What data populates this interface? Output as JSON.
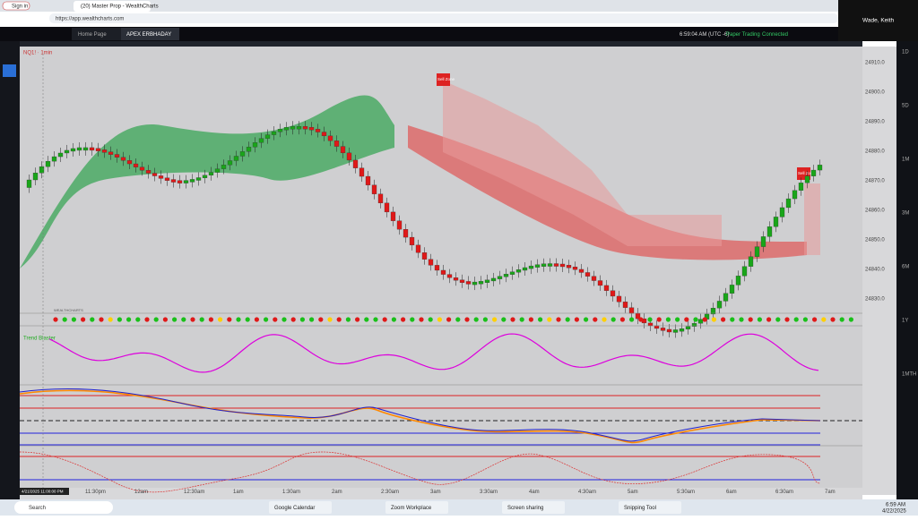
{
  "browser": {
    "sign_in": "Sign in",
    "tab_title": "(20) Master Prop - WealthCharts",
    "url": "https://app.wealthcharts.com"
  },
  "user": {
    "name": "Wade, Keith"
  },
  "app": {
    "tabs": [
      "Home Page",
      "APEX ERBHADAY"
    ],
    "clock": "6:59:04 AM (UTC -6)",
    "status": [
      "Paper Trading",
      "Connected"
    ]
  },
  "chart": {
    "symbol": "NQ1! · 1min",
    "sell_zone": [
      "Sell Zone",
      "Sell Zone"
    ],
    "date_label": "4/21/2025 11:00:00 PM",
    "time_labels": [
      "11:30pm",
      "12am",
      "12:30am",
      "1am",
      "1:30am",
      "2am",
      "2:30am",
      "3am",
      "3:30am",
      "4am",
      "4:30am",
      "5am",
      "5:30am",
      "6am",
      "6:30am",
      "7am"
    ],
    "price_labels": [
      "24910.0",
      "24900.0",
      "24890.0",
      "24880.0",
      "24870.0",
      "24860.0",
      "24850.0",
      "24840.0",
      "24830.0"
    ],
    "oscillator_label": "Trend Blaster",
    "sub_labels": [
      "WEALTHCHARTS"
    ]
  },
  "side_panel": [
    "1D",
    "5D",
    "1M",
    "3M",
    "6M",
    "1Y",
    "1MTH"
  ],
  "taskbar": {
    "search": "Search",
    "items": [
      "Google Calendar",
      "Zoom Workplace",
      "Screen sharing",
      "Snipping Tool"
    ],
    "time": "6:59 AM",
    "date": "4/22/2025"
  }
}
